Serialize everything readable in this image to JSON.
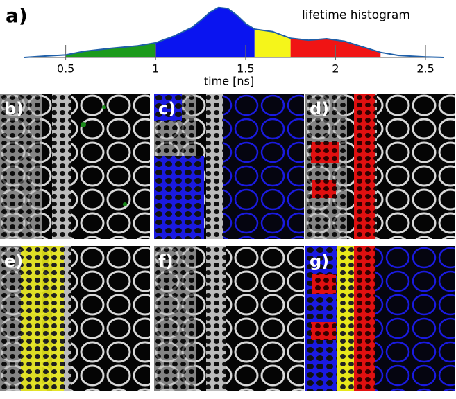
{
  "chart_data": {
    "type": "area",
    "panel_label": "a)",
    "title": "lifetime histogram",
    "xlabel": "time [ns]",
    "x": [
      0.27,
      0.4,
      0.5,
      0.6,
      0.75,
      0.9,
      1.0,
      1.1,
      1.2,
      1.25,
      1.3,
      1.35,
      1.4,
      1.45,
      1.5,
      1.55,
      1.65,
      1.75,
      1.85,
      1.95,
      2.05,
      2.15,
      2.25,
      2.35,
      2.5,
      2.6
    ],
    "values": [
      0,
      3,
      5,
      12,
      18,
      23,
      29,
      42,
      59,
      73,
      89,
      99,
      97,
      84,
      67,
      56,
      51,
      38,
      34,
      37,
      32,
      21,
      10,
      4,
      1,
      0
    ],
    "color": "#1f5fa8",
    "bands": [
      {
        "from": 0.5,
        "to": 1.0,
        "color": "#1c9a1c"
      },
      {
        "from": 1.0,
        "to": 1.55,
        "color": "#0a14f0"
      },
      {
        "from": 1.55,
        "to": 1.75,
        "color": "#f5f51a"
      },
      {
        "from": 1.75,
        "to": 2.25,
        "color": "#f01414"
      }
    ],
    "xlim": [
      0.27,
      2.6
    ],
    "ylim": [
      0,
      100
    ],
    "xticks": [
      0.5,
      1,
      1.5,
      2,
      2.5
    ]
  },
  "panels": [
    "b)",
    "c)",
    "d)",
    "e)",
    "f)",
    "g)"
  ]
}
